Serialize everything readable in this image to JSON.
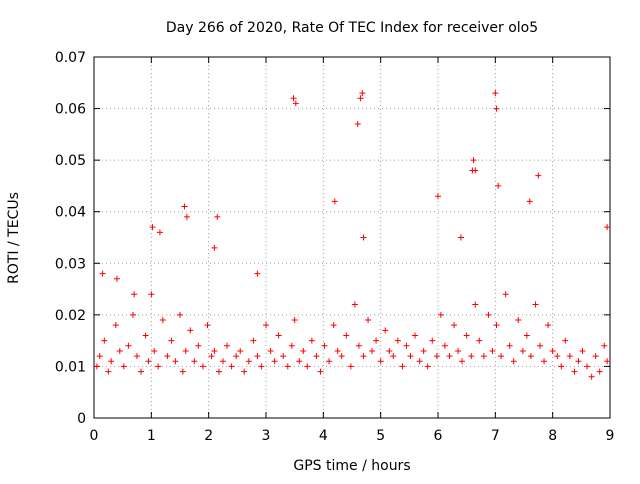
{
  "chart_data": {
    "type": "scatter",
    "title": "Day 266 of 2020, Rate Of TEC Index for receiver olo5",
    "xlabel": "GPS time / hours",
    "ylabel": "ROTI / TECUs",
    "xlim": [
      0,
      9
    ],
    "ylim": [
      0,
      0.07
    ],
    "x_ticks": [
      "0",
      "1",
      "2",
      "3",
      "4",
      "5",
      "6",
      "7",
      "8",
      "9"
    ],
    "y_ticks": [
      "0",
      "0.01",
      "0.02",
      "0.03",
      "0.04",
      "0.05",
      "0.06",
      "0.07"
    ],
    "grid": true,
    "marker": "plus",
    "color": "#ff0000",
    "x": [
      0.05,
      0.1,
      0.18,
      0.25,
      0.3,
      0.38,
      0.45,
      0.52,
      0.6,
      0.68,
      0.75,
      0.82,
      0.9,
      0.95,
      1.0,
      1.05,
      1.12,
      1.2,
      1.28,
      1.35,
      1.42,
      1.5,
      1.55,
      1.6,
      1.68,
      1.75,
      1.82,
      1.9,
      1.98,
      2.05,
      2.1,
      2.18,
      2.25,
      2.32,
      2.4,
      2.48,
      2.55,
      2.62,
      2.7,
      2.78,
      2.85,
      2.92,
      3.0,
      3.08,
      3.15,
      3.22,
      3.3,
      3.38,
      3.45,
      3.5,
      3.58,
      3.65,
      3.72,
      3.8,
      3.88,
      3.95,
      4.02,
      4.1,
      4.18,
      4.25,
      4.32,
      4.4,
      4.48,
      4.55,
      4.62,
      4.7,
      4.78,
      4.85,
      4.92,
      5.0,
      5.08,
      5.15,
      5.22,
      5.3,
      5.38,
      5.45,
      5.52,
      5.6,
      5.68,
      5.75,
      5.82,
      5.9,
      5.98,
      6.05,
      6.12,
      6.2,
      6.28,
      6.35,
      6.42,
      6.5,
      6.58,
      6.65,
      6.72,
      6.8,
      6.88,
      6.95,
      7.02,
      7.1,
      7.18,
      7.25,
      7.32,
      7.4,
      7.48,
      7.55,
      7.62,
      7.7,
      7.78,
      7.85,
      7.92,
      8.0,
      8.08,
      8.15,
      8.22,
      8.3,
      8.38,
      8.45,
      8.52,
      8.6,
      8.68,
      8.75,
      8.82,
      8.9,
      8.95,
      0.15,
      0.4,
      0.7,
      1.02,
      1.15,
      1.58,
      1.62,
      2.1,
      2.15,
      2.85,
      3.48,
      3.52,
      4.2,
      4.6,
      4.65,
      4.68,
      4.7,
      6.0,
      6.4,
      6.6,
      6.62,
      6.65,
      7.0,
      7.02,
      7.05,
      7.6,
      7.75,
      8.95
    ],
    "y": [
      0.01,
      0.012,
      0.015,
      0.009,
      0.011,
      0.018,
      0.013,
      0.01,
      0.014,
      0.02,
      0.012,
      0.009,
      0.016,
      0.011,
      0.024,
      0.013,
      0.01,
      0.019,
      0.012,
      0.015,
      0.011,
      0.02,
      0.009,
      0.013,
      0.017,
      0.011,
      0.014,
      0.01,
      0.018,
      0.012,
      0.013,
      0.009,
      0.011,
      0.014,
      0.01,
      0.012,
      0.013,
      0.009,
      0.011,
      0.015,
      0.012,
      0.01,
      0.018,
      0.013,
      0.011,
      0.016,
      0.012,
      0.01,
      0.014,
      0.019,
      0.011,
      0.013,
      0.01,
      0.015,
      0.012,
      0.009,
      0.014,
      0.011,
      0.018,
      0.013,
      0.012,
      0.016,
      0.01,
      0.022,
      0.014,
      0.012,
      0.019,
      0.013,
      0.015,
      0.011,
      0.017,
      0.013,
      0.012,
      0.015,
      0.01,
      0.014,
      0.012,
      0.016,
      0.011,
      0.013,
      0.01,
      0.015,
      0.012,
      0.02,
      0.014,
      0.012,
      0.018,
      0.013,
      0.011,
      0.016,
      0.012,
      0.022,
      0.015,
      0.012,
      0.02,
      0.013,
      0.018,
      0.012,
      0.024,
      0.014,
      0.011,
      0.019,
      0.013,
      0.016,
      0.012,
      0.022,
      0.014,
      0.011,
      0.018,
      0.013,
      0.012,
      0.01,
      0.015,
      0.012,
      0.009,
      0.011,
      0.013,
      0.01,
      0.008,
      0.012,
      0.009,
      0.014,
      0.011,
      0.028,
      0.027,
      0.024,
      0.037,
      0.036,
      0.041,
      0.039,
      0.033,
      0.039,
      0.028,
      0.062,
      0.061,
      0.042,
      0.057,
      0.062,
      0.063,
      0.035,
      0.043,
      0.035,
      0.048,
      0.05,
      0.048,
      0.063,
      0.06,
      0.045,
      0.042,
      0.047,
      0.037
    ]
  }
}
